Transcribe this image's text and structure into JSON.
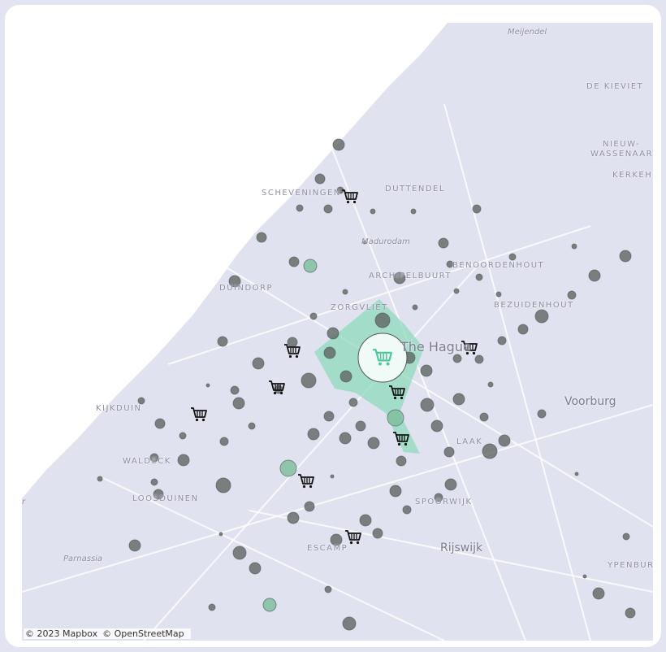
{
  "map": {
    "labels": {
      "meijendel": "Meijendel",
      "de_kieviet": "DE KIEVIET",
      "nieuw": "NIEUW-",
      "wassenaar": "WASSENAAR",
      "kerkehout": "KERKEHO",
      "scheveningen": "SCHEVENINGEN",
      "duttendel": "DUTTENDEL",
      "madurodam": "Madurodam",
      "archipelbuurt": "ARCHIPELBUURT",
      "benoordenhout": "BENOORDENHOUT",
      "duindorp": "DUINDORP",
      "bezuidenhout": "BEZUIDENHOUT",
      "zorgvliet": "ZORGVLIET",
      "the_hague": "The Hague",
      "voorburg": "Voorburg",
      "kijkduin": "KIJKDUIN",
      "laak": "LAAK",
      "waldeck": "WALDECK",
      "loosduinen": "LOOSDUINEN",
      "spoorwijk": "SPOORWIJK",
      "rijswijk": "Rijswijk",
      "escamp": "ESCAMP",
      "parnassia": "Parnassia",
      "ypenburg": "YPENBUR",
      "r": "r"
    },
    "colors": {
      "land": "#e1e2ef",
      "sea": "#ffffff",
      "highlight": "#8fd9bd",
      "marker": "#5f6563",
      "marker_green": "#7fbf9f"
    },
    "selected_icon": "shopping-cart-icon",
    "attribution": [
      "© 2023 Mapbox",
      "© OpenStreetMap"
    ]
  }
}
